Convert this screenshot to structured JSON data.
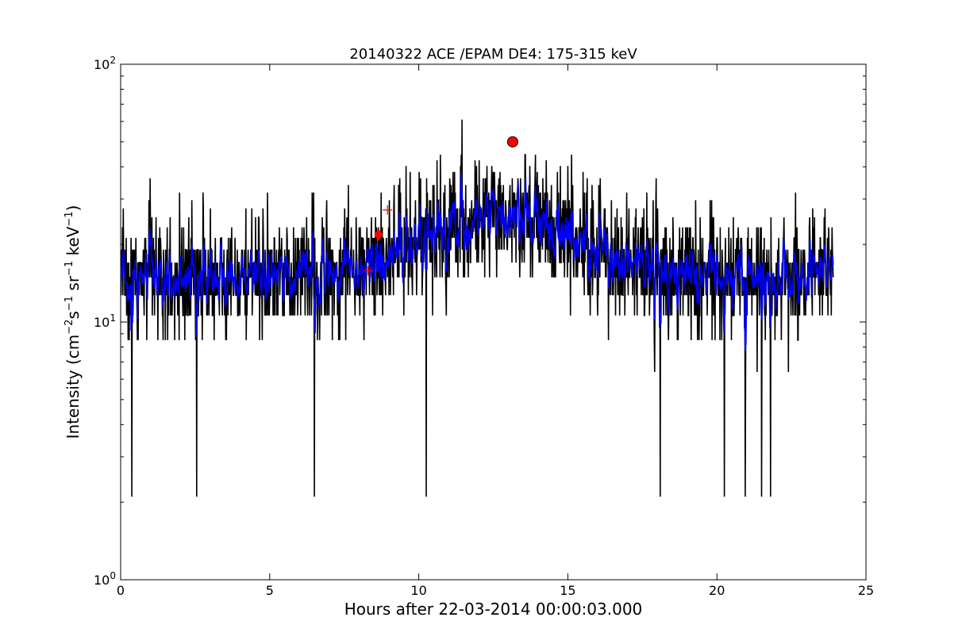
{
  "chart_data": {
    "type": "line",
    "title": "20140322 ACE /EPAM DE4: 175-315 keV",
    "xlabel": "Hours after 22-03-2014 00:00:03.000",
    "ylabel": {
      "prefix": "Intensity (cm",
      "sup1": "−2",
      "mid1": "s",
      "sup2": "−1",
      "mid2": " sr",
      "sup3": "−1",
      "mid3": " keV",
      "sup4": "−1",
      "suffix": ")"
    },
    "xlim": [
      0,
      25
    ],
    "ylim": [
      1,
      100
    ],
    "yscale": "log",
    "grid": false,
    "x_ticks": [
      {
        "value": 0,
        "label": "0"
      },
      {
        "value": 5,
        "label": "5"
      },
      {
        "value": 10,
        "label": "10"
      },
      {
        "value": 15,
        "label": "15"
      },
      {
        "value": 20,
        "label": "20"
      },
      {
        "value": 25,
        "label": "25"
      }
    ],
    "y_ticks": [
      {
        "value": 1,
        "base": "10",
        "exp": "0"
      },
      {
        "value": 10,
        "base": "10",
        "exp": "1"
      },
      {
        "value": 100,
        "base": "10",
        "exp": "2"
      }
    ],
    "colors": {
      "raw": "#000000",
      "smoothed": "#0000ff",
      "marker": "#ff0000"
    },
    "series": [
      {
        "kind": "raw",
        "color": "#000000",
        "x_range": [
          0,
          23.9
        ],
        "sample_hours": 0.0125,
        "baseline_profile": [
          [
            0,
            15
          ],
          [
            2,
            15
          ],
          [
            4,
            15
          ],
          [
            6,
            15
          ],
          [
            7.5,
            16
          ],
          [
            8.5,
            18
          ],
          [
            9.5,
            20
          ],
          [
            10.5,
            22
          ],
          [
            12,
            24
          ],
          [
            13.5,
            25
          ],
          [
            14.5,
            23
          ],
          [
            15.5,
            20
          ],
          [
            16.5,
            18
          ],
          [
            18,
            16
          ],
          [
            20,
            15
          ],
          [
            22,
            15
          ],
          [
            23.9,
            15
          ]
        ],
        "discrete_levels": [
          2.1,
          4.2,
          6.4,
          8.5,
          10.6,
          12.7,
          14.9,
          17,
          19.1,
          21.2,
          23.3,
          25.5,
          27.6,
          29.7,
          31.8,
          34,
          36.1,
          38.2,
          40.3,
          42.4,
          44.6,
          61
        ],
        "notable_values": [
          {
            "x": 0.38,
            "y": 2.1
          },
          {
            "x": 2.55,
            "y": 2.1
          },
          {
            "x": 6.5,
            "y": 2.1
          },
          {
            "x": 10.25,
            "y": 2.1
          },
          {
            "x": 11.45,
            "y": 61
          },
          {
            "x": 18.1,
            "y": 2.1
          },
          {
            "x": 20.25,
            "y": 2.1
          },
          {
            "x": 20.95,
            "y": 2.1
          },
          {
            "x": 21.5,
            "y": 2.1
          },
          {
            "x": 21.8,
            "y": 2.1
          }
        ]
      },
      {
        "kind": "smoothed",
        "color": "#0000ff",
        "x_range": [
          0,
          23.9
        ],
        "sample_hours": 0.0125
      }
    ],
    "markers": [
      {
        "shape": "circle",
        "x": 13.15,
        "y": 50,
        "color": "#ff0000"
      },
      {
        "shape": "diamond",
        "x": 8.65,
        "y": 21.8,
        "color": "#ff0000"
      },
      {
        "shape": "plus",
        "x": 8.3,
        "y": 15.8,
        "color": "#ff0000"
      },
      {
        "shape": "plus",
        "x": 8.95,
        "y": 27.2,
        "color": "#ff0000"
      }
    ]
  }
}
